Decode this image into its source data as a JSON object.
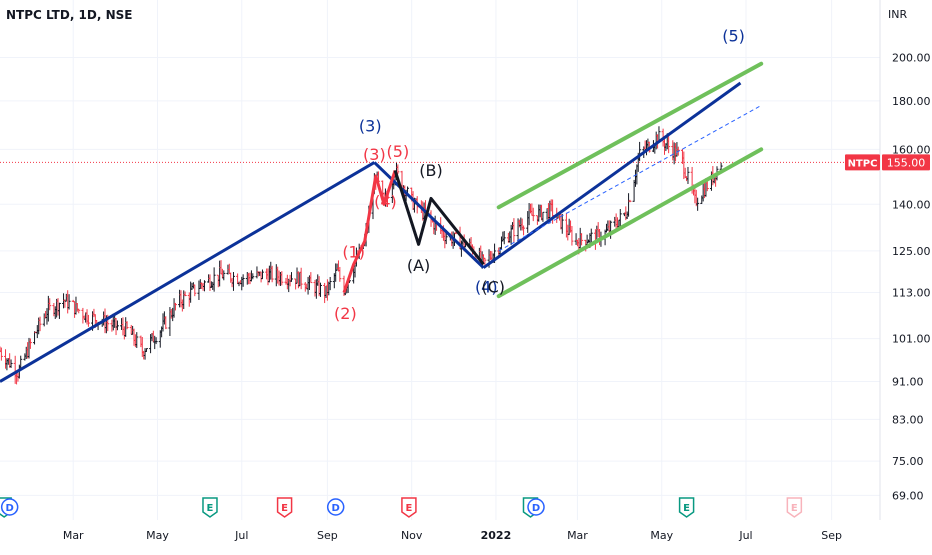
{
  "header": {
    "symbol_title": "NTPC LTD, 1D, NSE",
    "currency": "INR"
  },
  "price_tag": {
    "label": "NTPC",
    "value": "155.00",
    "color": "#f23645"
  },
  "colors": {
    "up": "#131722",
    "down": "#f23645",
    "grid": "#f0f3fa",
    "trend_blue": "#0c3299",
    "channel_green": "#6fc05b",
    "wave_red": "#f23645",
    "wave_blue": "#0c3299",
    "wave_black": "#131722"
  },
  "chart_data": {
    "type": "candlestick",
    "title": "NTPC LTD, 1D, NSE",
    "xlabel": "",
    "ylabel": "INR",
    "y_scale": "log",
    "ylim": [
      65,
      230
    ],
    "y_ticks": [
      "200.00",
      "180.00",
      "160.00",
      "140.00",
      "125.00",
      "113.00",
      "101.00",
      "91.00",
      "83.00",
      "75.00",
      "69.00"
    ],
    "y_tick_values": [
      200,
      180,
      160,
      140,
      125,
      113,
      101,
      91,
      83,
      75,
      69
    ],
    "x_ticks": [
      "Mar",
      "May",
      "Jul",
      "Sep",
      "Nov",
      "2022",
      "Mar",
      "May",
      "Jul",
      "Sep"
    ],
    "x_tick_dates": [
      "2021-03-01",
      "2021-05-01",
      "2021-07-01",
      "2021-09-01",
      "2021-11-01",
      "2022-01-01",
      "2022-03-01",
      "2022-05-01",
      "2022-07-01",
      "2022-09-01"
    ],
    "x_range": [
      "2021-01-07",
      "2022-10-06"
    ],
    "last_price": 155.0,
    "price_path": [
      {
        "date": "2021-01-07",
        "close": 98
      },
      {
        "date": "2021-01-20",
        "close": 93
      },
      {
        "date": "2021-02-01",
        "close": 102
      },
      {
        "date": "2021-02-10",
        "close": 108
      },
      {
        "date": "2021-02-22",
        "close": 111
      },
      {
        "date": "2021-03-10",
        "close": 107
      },
      {
        "date": "2021-03-25",
        "close": 105
      },
      {
        "date": "2021-04-10",
        "close": 103
      },
      {
        "date": "2021-04-20",
        "close": 98
      },
      {
        "date": "2021-05-05",
        "close": 104
      },
      {
        "date": "2021-05-15",
        "close": 110
      },
      {
        "date": "2021-06-01",
        "close": 115
      },
      {
        "date": "2021-06-15",
        "close": 118
      },
      {
        "date": "2021-07-01",
        "close": 117
      },
      {
        "date": "2021-07-20",
        "close": 118
      },
      {
        "date": "2021-08-10",
        "close": 117
      },
      {
        "date": "2021-08-31",
        "close": 113
      },
      {
        "date": "2021-09-08",
        "close": 119
      },
      {
        "date": "2021-09-13",
        "close": 114
      },
      {
        "date": "2021-09-28",
        "close": 128
      },
      {
        "date": "2021-10-06",
        "close": 150
      },
      {
        "date": "2021-10-12",
        "close": 140
      },
      {
        "date": "2021-10-20",
        "close": 152
      },
      {
        "date": "2021-11-01",
        "close": 141
      },
      {
        "date": "2021-11-25",
        "close": 130
      },
      {
        "date": "2021-12-15",
        "close": 126
      },
      {
        "date": "2021-12-23",
        "close": 121
      },
      {
        "date": "2022-01-10",
        "close": 130
      },
      {
        "date": "2022-01-25",
        "close": 136
      },
      {
        "date": "2022-02-10",
        "close": 138
      },
      {
        "date": "2022-02-28",
        "close": 128
      },
      {
        "date": "2022-03-20",
        "close": 130
      },
      {
        "date": "2022-04-05",
        "close": 137
      },
      {
        "date": "2022-04-15",
        "close": 158
      },
      {
        "date": "2022-04-28",
        "close": 165
      },
      {
        "date": "2022-05-15",
        "close": 157
      },
      {
        "date": "2022-05-25",
        "close": 141
      },
      {
        "date": "2022-06-05",
        "close": 148
      },
      {
        "date": "2022-06-13",
        "close": 155
      }
    ],
    "elliott_labels": [
      {
        "text": "(3)",
        "date": "2021-10-02",
        "price": 167,
        "color": "wave_blue"
      },
      {
        "text": "(3)",
        "date": "2021-10-05",
        "price": 156,
        "color": "wave_red"
      },
      {
        "text": "(5)",
        "date": "2021-10-22",
        "price": 157,
        "color": "wave_red"
      },
      {
        "text": "(4)",
        "date": "2021-10-13",
        "price": 139,
        "color": "wave_red"
      },
      {
        "text": "(1)",
        "date": "2021-09-20",
        "price": 123,
        "color": "wave_red"
      },
      {
        "text": "(2)",
        "date": "2021-09-14",
        "price": 106,
        "color": "wave_red"
      },
      {
        "text": "(B)",
        "date": "2021-11-15",
        "price": 150,
        "color": "wave_black"
      },
      {
        "text": "(A)",
        "date": "2021-11-06",
        "price": 119,
        "color": "wave_black"
      },
      {
        "text": "(4)",
        "date": "2021-12-25",
        "price": 113,
        "color": "wave_blue"
      },
      {
        "text": "(C)",
        "date": "2021-12-30",
        "price": 113,
        "color": "wave_black"
      },
      {
        "text": "(5)",
        "date": "2022-06-22",
        "price": 208,
        "color": "wave_blue"
      }
    ],
    "trend_lines": [
      {
        "name": "wave-3-line",
        "color": "trend_blue",
        "points": [
          [
            "2021-01-07",
            91
          ],
          [
            "2021-10-05",
            155
          ]
        ]
      },
      {
        "name": "wave-4-line",
        "color": "trend_blue",
        "points": [
          [
            "2021-10-05",
            155
          ],
          [
            "2021-12-23",
            120
          ]
        ]
      },
      {
        "name": "wave-5-line",
        "color": "trend_blue",
        "points": [
          [
            "2021-12-23",
            120
          ],
          [
            "2022-06-27",
            188
          ]
        ]
      },
      {
        "name": "impulse-red-line",
        "color": "wave_red",
        "points": [
          [
            "2021-09-13",
            113
          ],
          [
            "2021-09-20",
            121
          ],
          [
            "2021-09-28",
            128
          ],
          [
            "2021-10-06",
            150
          ],
          [
            "2021-10-12",
            140
          ],
          [
            "2021-10-20",
            152
          ]
        ]
      },
      {
        "name": "abc-correction-line",
        "color": "wave_black",
        "points": [
          [
            "2021-10-20",
            152
          ],
          [
            "2021-11-06",
            127
          ],
          [
            "2021-11-15",
            142
          ],
          [
            "2021-12-23",
            121
          ]
        ]
      }
    ],
    "channel": {
      "upper": [
        [
          "2022-01-03",
          139
        ],
        [
          "2022-07-12",
          197
        ]
      ],
      "lower": [
        [
          "2022-01-03",
          112
        ],
        [
          "2022-07-12",
          160
        ]
      ],
      "mid_dashed": [
        [
          "2022-01-03",
          125
        ],
        [
          "2022-07-12",
          178
        ]
      ]
    },
    "events": [
      {
        "letter": "E",
        "date": "2021-01-10",
        "color": "#089981"
      },
      {
        "letter": "D",
        "date": "2021-01-14",
        "color": "#2962ff"
      },
      {
        "letter": "E",
        "date": "2021-06-08",
        "color": "#089981"
      },
      {
        "letter": "E",
        "date": "2021-08-01",
        "color": "#f23645"
      },
      {
        "letter": "D",
        "date": "2021-09-07",
        "color": "#2962ff"
      },
      {
        "letter": "E",
        "date": "2021-10-30",
        "color": "#f23645"
      },
      {
        "letter": "E",
        "date": "2022-01-26",
        "color": "#089981"
      },
      {
        "letter": "D",
        "date": "2022-01-30",
        "color": "#2962ff"
      },
      {
        "letter": "E",
        "date": "2022-05-19",
        "color": "#089981"
      },
      {
        "letter": "E",
        "date": "2022-08-05",
        "color": "#f8b3bb"
      }
    ]
  }
}
